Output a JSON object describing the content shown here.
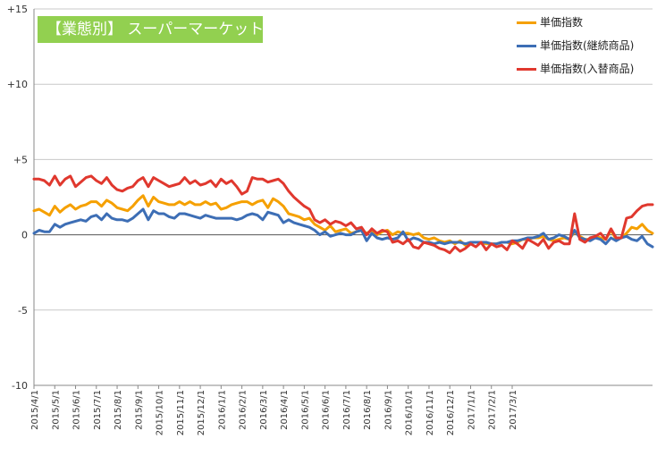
{
  "chart_data": {
    "type": "line",
    "title": "【業態別】 スーパーマーケット",
    "title_color": "#92d050",
    "y_ticks": [
      "+15",
      "+10",
      "+5",
      "0",
      "-5",
      "-10"
    ],
    "y_tick_values": [
      15,
      10,
      5,
      0,
      -5,
      -10
    ],
    "ylim": [
      -10,
      15
    ],
    "x_tick_labels": [
      "2015/4/1",
      "2015/5/1",
      "2015/6/1",
      "2015/7/1",
      "2015/8/1",
      "2015/9/1",
      "2015/10/1",
      "2015/11/1",
      "2015/12/1",
      "2016/1/1",
      "2016/2/1",
      "2016/3/1",
      "2016/4/1",
      "2016/5/1",
      "2016/6/1",
      "2016/7/1",
      "2016/8/1",
      "2016/9/1",
      "2016/10/1",
      "2016/11/1",
      "2016/12/1",
      "2017/1/1",
      "2017/2/1",
      "2017/3/1"
    ],
    "points_per_month": 4,
    "legend_position": "top-right",
    "series": [
      {
        "name": "単価指数",
        "color": "#f5a000",
        "values": [
          1.6,
          1.7,
          1.5,
          1.3,
          1.9,
          1.5,
          1.8,
          2.0,
          1.7,
          1.9,
          2.0,
          2.2,
          2.2,
          1.9,
          2.3,
          2.1,
          1.8,
          1.7,
          1.6,
          1.9,
          2.3,
          2.6,
          1.9,
          2.5,
          2.2,
          2.1,
          2.0,
          2.0,
          2.2,
          2.0,
          2.2,
          2.0,
          2.0,
          2.2,
          2.0,
          2.1,
          1.7,
          1.8,
          2.0,
          2.1,
          2.2,
          2.2,
          2.0,
          2.2,
          2.3,
          1.8,
          2.4,
          2.2,
          1.9,
          1.4,
          1.3,
          1.2,
          1.0,
          1.1,
          0.7,
          0.5,
          0.3,
          0.6,
          0.2,
          0.3,
          0.4,
          0.1,
          0.2,
          0.3,
          0.1,
          0.3,
          0.0,
          0.2,
          0.3,
          0.0,
          0.2,
          0.1,
          0.1,
          0.0,
          0.1,
          -0.2,
          -0.3,
          -0.2,
          -0.4,
          -0.5,
          -0.4,
          -0.6,
          -0.4,
          -0.7,
          -0.5,
          -0.5,
          -0.5,
          -0.6,
          -0.6,
          -0.6,
          -0.5,
          -0.5,
          -0.6,
          -0.5,
          -0.3,
          -0.3,
          -0.2,
          -0.2,
          -0.1,
          -0.3,
          -0.4,
          -0.3,
          -0.2,
          -0.3,
          0.2,
          -0.1,
          -0.3,
          -0.3,
          -0.1,
          -0.2,
          -0.3,
          0.3,
          -0.3,
          -0.2,
          0.1,
          0.5,
          0.4,
          0.7,
          0.3,
          0.1
        ]
      },
      {
        "name": "単価指数(継続商品)",
        "color": "#3d6eb5",
        "values": [
          0.1,
          0.3,
          0.2,
          0.2,
          0.7,
          0.5,
          0.7,
          0.8,
          0.9,
          1.0,
          0.9,
          1.2,
          1.3,
          1.0,
          1.4,
          1.1,
          1.0,
          1.0,
          0.9,
          1.1,
          1.4,
          1.7,
          1.0,
          1.6,
          1.4,
          1.4,
          1.2,
          1.1,
          1.4,
          1.4,
          1.3,
          1.2,
          1.1,
          1.3,
          1.2,
          1.1,
          1.1,
          1.1,
          1.1,
          1.0,
          1.1,
          1.3,
          1.4,
          1.3,
          1.0,
          1.5,
          1.4,
          1.3,
          0.8,
          1.0,
          0.8,
          0.7,
          0.6,
          0.5,
          0.3,
          0.0,
          0.2,
          -0.1,
          0.0,
          0.1,
          0.0,
          0.0,
          0.2,
          0.3,
          -0.4,
          0.1,
          -0.2,
          -0.3,
          -0.2,
          -0.3,
          -0.2,
          0.2,
          -0.4,
          -0.2,
          -0.3,
          -0.5,
          -0.5,
          -0.6,
          -0.5,
          -0.6,
          -0.5,
          -0.5,
          -0.5,
          -0.6,
          -0.5,
          -0.5,
          -0.5,
          -0.5,
          -0.6,
          -0.6,
          -0.5,
          -0.5,
          -0.4,
          -0.4,
          -0.3,
          -0.2,
          -0.2,
          -0.1,
          0.1,
          -0.3,
          -0.2,
          0.0,
          -0.1,
          -0.3,
          0.3,
          -0.2,
          -0.3,
          -0.4,
          -0.2,
          -0.3,
          -0.6,
          -0.2,
          -0.4,
          -0.2,
          -0.1,
          -0.3,
          -0.4,
          -0.1,
          -0.6,
          -0.8
        ]
      },
      {
        "name": "単価指数(入替商品)",
        "color": "#e0382e",
        "values": [
          3.7,
          3.7,
          3.6,
          3.3,
          3.9,
          3.3,
          3.7,
          3.9,
          3.2,
          3.5,
          3.8,
          3.9,
          3.6,
          3.4,
          3.8,
          3.3,
          3.0,
          2.9,
          3.1,
          3.2,
          3.6,
          3.8,
          3.2,
          3.8,
          3.6,
          3.4,
          3.2,
          3.3,
          3.4,
          3.8,
          3.4,
          3.6,
          3.3,
          3.4,
          3.6,
          3.2,
          3.7,
          3.4,
          3.6,
          3.2,
          2.7,
          2.9,
          3.8,
          3.7,
          3.7,
          3.5,
          3.6,
          3.7,
          3.4,
          2.9,
          2.5,
          2.2,
          1.9,
          1.7,
          1.0,
          0.8,
          1.0,
          0.7,
          0.9,
          0.8,
          0.6,
          0.8,
          0.4,
          0.5,
          0.0,
          0.4,
          0.1,
          0.3,
          0.2,
          -0.5,
          -0.4,
          -0.6,
          -0.3,
          -0.8,
          -0.9,
          -0.5,
          -0.6,
          -0.7,
          -0.9,
          -1.0,
          -1.2,
          -0.8,
          -1.1,
          -0.9,
          -0.6,
          -0.8,
          -0.5,
          -1.0,
          -0.6,
          -0.8,
          -0.7,
          -1.0,
          -0.4,
          -0.6,
          -0.9,
          -0.3,
          -0.5,
          -0.7,
          -0.3,
          -0.9,
          -0.5,
          -0.4,
          -0.6,
          -0.6,
          1.4,
          -0.3,
          -0.5,
          -0.2,
          -0.1,
          0.1,
          -0.3,
          0.4,
          -0.2,
          -0.2,
          1.1,
          1.2,
          1.6,
          1.9,
          2.0,
          2.0
        ]
      }
    ]
  }
}
